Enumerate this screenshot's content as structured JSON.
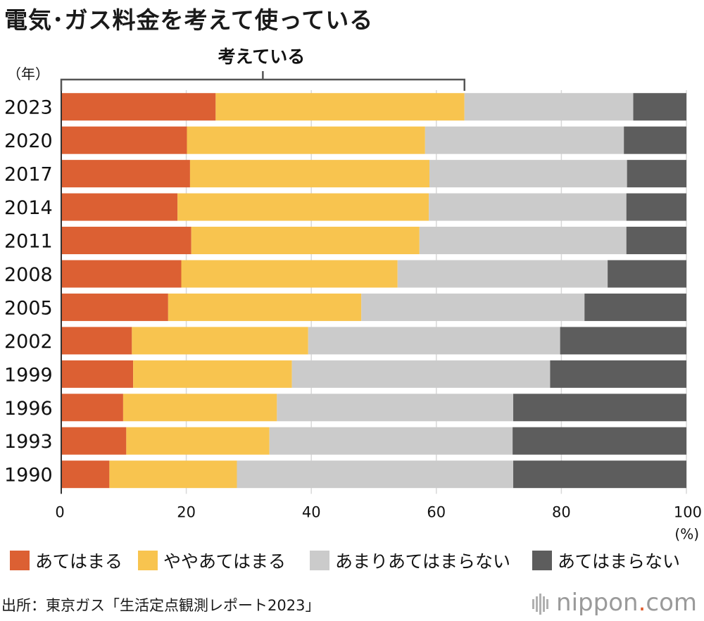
{
  "title": "電気･ガス料金を考えて使っている",
  "source": "出所：東京ガス「生活定点観測レポート2023」",
  "logo": {
    "text": "nippon",
    "dot": ".",
    "suffix": "com"
  },
  "chart_data": {
    "type": "bar",
    "orientation": "horizontal",
    "stacked": true,
    "title": "電気･ガス料金を考えて使っている",
    "y_unit_label": "（年）",
    "x_unit_label": "(%)",
    "bracket_label": "考えている",
    "xlim": [
      0,
      100
    ],
    "x_ticks": [
      0,
      20,
      40,
      60,
      80,
      100
    ],
    "grid": true,
    "legend_position": "bottom",
    "categories": [
      "2023",
      "2020",
      "2017",
      "2014",
      "2011",
      "2008",
      "2005",
      "2002",
      "1999",
      "1996",
      "1993",
      "1990"
    ],
    "series": [
      {
        "name": "あてはまる",
        "color": "#dc6033",
        "values": [
          24.7,
          20.1,
          20.6,
          18.6,
          20.8,
          19.2,
          17.1,
          11.3,
          11.5,
          9.9,
          10.4,
          7.7
        ]
      },
      {
        "name": "ややあてはまる",
        "color": "#f8c44f",
        "values": [
          39.8,
          38.1,
          38.3,
          40.2,
          36.5,
          34.6,
          30.9,
          28.2,
          25.4,
          24.6,
          22.9,
          20.4
        ]
      },
      {
        "name": "あまりあてはまらない",
        "color": "#cbcbcb",
        "values": [
          27.0,
          31.8,
          31.6,
          31.6,
          33.1,
          33.6,
          35.7,
          40.3,
          41.3,
          37.8,
          38.9,
          44.2
        ]
      },
      {
        "name": "あてはまらない",
        "color": "#5d5d5d",
        "values": [
          8.5,
          10.0,
          9.5,
          9.6,
          9.6,
          12.6,
          16.3,
          20.2,
          21.8,
          27.7,
          27.8,
          27.7
        ]
      }
    ],
    "bracket_range": [
      0,
      64.5
    ]
  }
}
